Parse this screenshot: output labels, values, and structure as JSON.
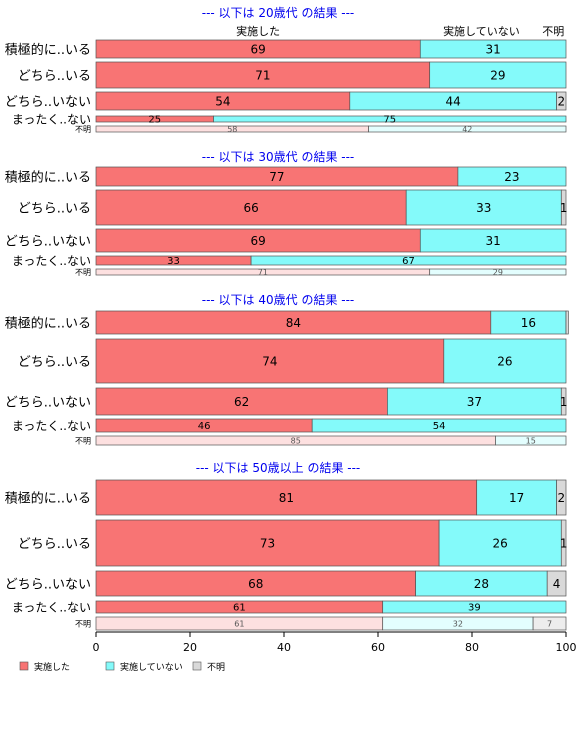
{
  "chart_data": {
    "type": "bar",
    "orientation": "horizontal",
    "stacked": true,
    "xlim": [
      0,
      100
    ],
    "x_ticks": [
      "0",
      "20",
      "40",
      "60",
      "80",
      "100"
    ],
    "category_labels": [
      "積極的に..いる",
      "どちら..いる",
      "どちら..いない",
      "まったく..ない",
      "不明"
    ],
    "series_names": [
      "実施した",
      "実施していない",
      "不明"
    ],
    "series_colors": [
      "#f87474",
      "#84fafa",
      "#d9d9d9"
    ],
    "top_headers": [
      "実施した",
      "実施していない",
      "不明"
    ],
    "legend": {
      "position": "bottom-left",
      "labels": [
        "実施した",
        "実施していない",
        "不明"
      ],
      "colors": [
        "#f87474",
        "#84fafa",
        "#d9d9d9"
      ]
    },
    "panels": [
      {
        "title": "--- 以下は 20歳代 の結果 ---",
        "rows": [
          {
            "label": "積極的に..いる",
            "values": [
              69,
              31,
              0
            ]
          },
          {
            "label": "どちら..いる",
            "values": [
              71,
              29,
              0
            ]
          },
          {
            "label": "どちら..いない",
            "values": [
              54,
              44,
              2
            ]
          },
          {
            "label": "まったく..ない",
            "values": [
              25,
              75,
              0
            ]
          },
          {
            "label": "不明",
            "values": [
              58,
              42,
              0
            ]
          }
        ]
      },
      {
        "title": "--- 以下は 30歳代 の結果 ---",
        "rows": [
          {
            "label": "積極的に..いる",
            "values": [
              77,
              23,
              0
            ]
          },
          {
            "label": "どちら..いる",
            "values": [
              66,
              33,
              1
            ]
          },
          {
            "label": "どちら..いない",
            "values": [
              69,
              31,
              0
            ]
          },
          {
            "label": "まったく..ない",
            "values": [
              33,
              67,
              0
            ]
          },
          {
            "label": "不明",
            "values": [
              71,
              29,
              0
            ]
          }
        ]
      },
      {
        "title": "--- 以下は 40歳代 の結果 ---",
        "rows": [
          {
            "label": "積極的に..いる",
            "values": [
              84,
              16,
              0.5
            ]
          },
          {
            "label": "どちら..いる",
            "values": [
              74,
              26,
              0
            ]
          },
          {
            "label": "どちら..いない",
            "values": [
              62,
              37,
              1
            ]
          },
          {
            "label": "まったく..ない",
            "values": [
              46,
              54,
              0
            ]
          },
          {
            "label": "不明",
            "values": [
              85,
              15,
              0
            ]
          }
        ]
      },
      {
        "title": "--- 以下は 50歳以上 の結果 ---",
        "rows": [
          {
            "label": "積極的に..いる",
            "values": [
              81,
              17,
              2
            ]
          },
          {
            "label": "どちら..いる",
            "values": [
              73,
              26,
              1
            ]
          },
          {
            "label": "どちら..いない",
            "values": [
              68,
              28,
              4
            ]
          },
          {
            "label": "まったく..ない",
            "values": [
              61,
              39,
              0
            ]
          },
          {
            "label": "不明",
            "values": [
              61,
              32,
              7
            ]
          }
        ]
      }
    ]
  }
}
